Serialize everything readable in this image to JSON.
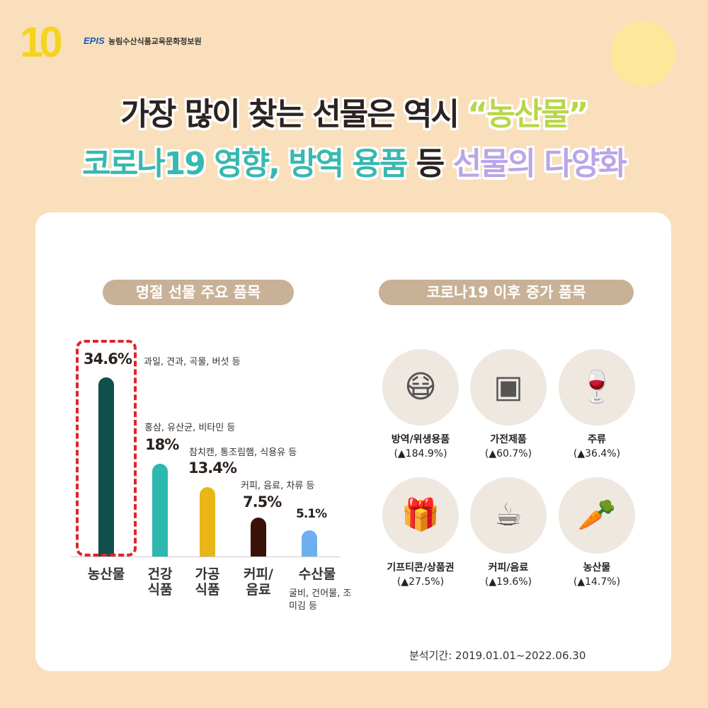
{
  "header": {
    "logo_number": "10",
    "brand": "EPIS",
    "org": "농림수산식품교육문화정보원"
  },
  "title": {
    "line1_a": "가장 많이 찾는 선물은 역시 ",
    "line1_b": "“농산물”",
    "line2_a": "코로나19 영향,",
    "line2_b": " 방역 용품",
    "line2_c": " 등 ",
    "line2_d": "선물의 다양화"
  },
  "left_pill": "명절 선물 주요 품목",
  "right_pill": "코로나19 이후 증가 품목",
  "chart_data": {
    "type": "bar",
    "title": "명절 선물 주요 품목",
    "categories": [
      "농산물",
      "건강 식품",
      "가공 식품",
      "커피/ 음료",
      "수산물"
    ],
    "values": [
      34.6,
      18,
      13.4,
      7.5,
      5.1
    ],
    "labels": [
      "34.6%",
      "18%",
      "13.4%",
      "7.5%",
      "5.1%"
    ],
    "notes": [
      "과일, 견과, 곡물, 버섯 등",
      "홍삼, 유산균, 비타민 등",
      "참치캔, 통조림햄, 식용유 등",
      "커피, 음료, 차류 등",
      "굴비, 건어물, 조미김 등"
    ],
    "colors": [
      "#0f4f4c",
      "#2db8b0",
      "#e9b615",
      "#3a120a",
      "#6db0ee"
    ],
    "highlight": "농산물",
    "ylim": [
      0,
      35
    ]
  },
  "increase_items": [
    {
      "name": "방역/위생용품",
      "change": "(▲184.9%)",
      "icon": "mask-icon"
    },
    {
      "name": "가전제품",
      "change": "(▲60.7%)",
      "icon": "microwave-icon"
    },
    {
      "name": "주류",
      "change": "(▲36.4%)",
      "icon": "wine-icon"
    },
    {
      "name": "기프티콘/상품권",
      "change": "(▲27.5%)",
      "icon": "gift-phone-icon"
    },
    {
      "name": "커피/음료",
      "change": "(▲19.6%)",
      "icon": "coffee-cup-icon"
    },
    {
      "name": "농산물",
      "change": "(▲14.7%)",
      "icon": "produce-icon"
    }
  ],
  "period": "분석기간: 2019.01.01~2022.06.30"
}
